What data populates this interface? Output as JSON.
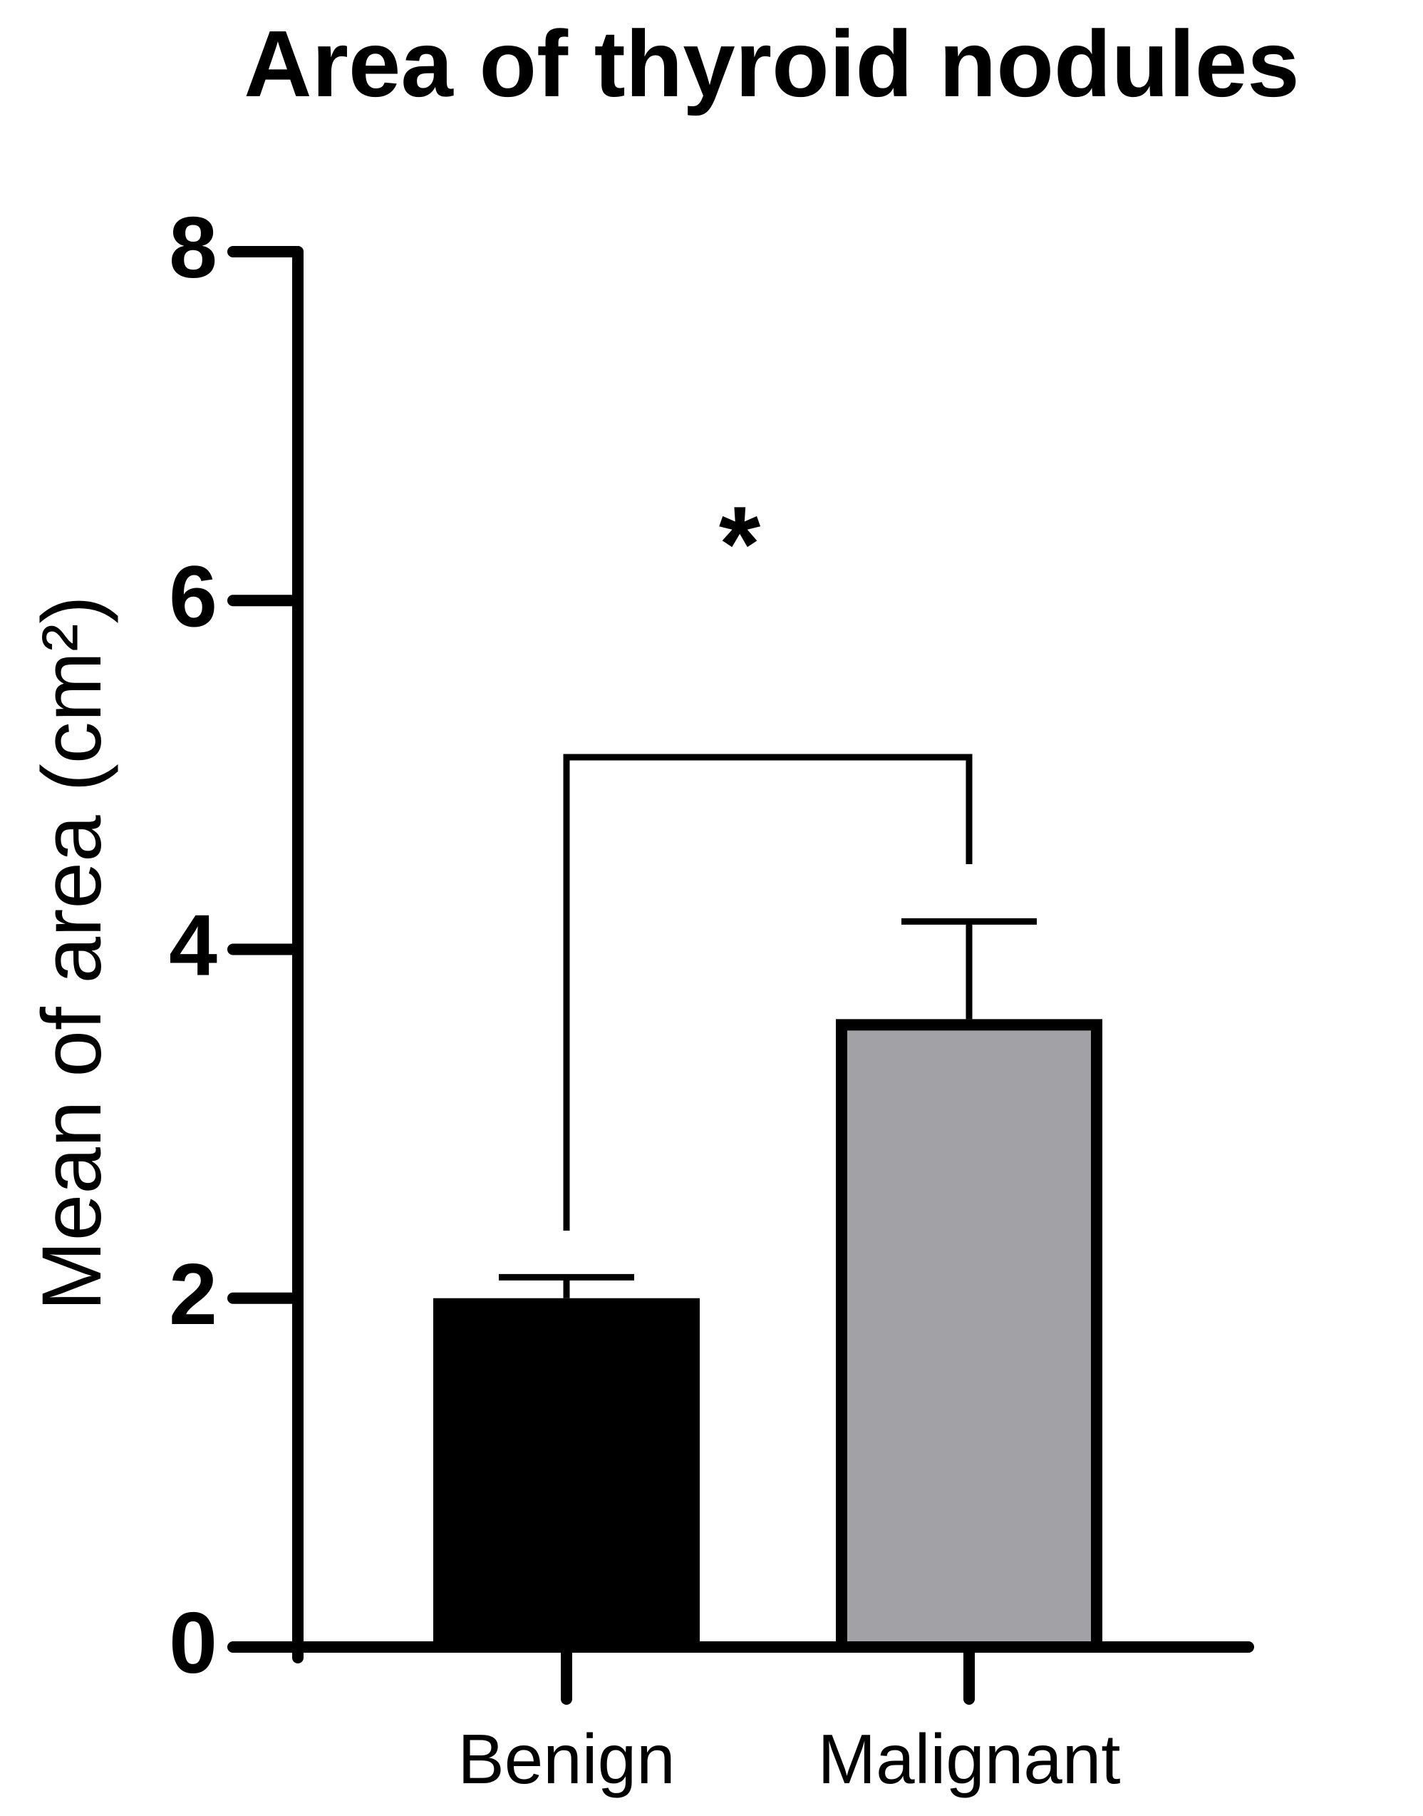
{
  "chart_data": {
    "type": "bar",
    "title": "Area of thyroid nodules",
    "y_label": "Mean of area (cm²)",
    "categories": [
      "Benign",
      "Malignant"
    ],
    "values": [
      2.0,
      3.6
    ],
    "errors": [
      0.12,
      0.56
    ],
    "colors": [
      "#000000",
      "#a2a1a6"
    ],
    "annotation": "*",
    "ylim": [
      0,
      8
    ],
    "yticks": [
      0,
      2,
      4,
      6,
      8
    ],
    "grid": false
  }
}
